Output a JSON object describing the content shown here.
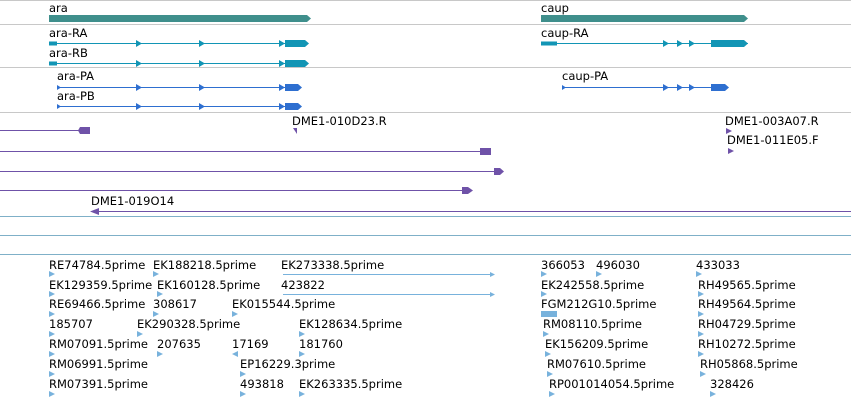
{
  "colors": {
    "track_border": "#c8c8c8",
    "track_border_blue": "#7fb0c8",
    "gene": "#3f8f8c",
    "transcript_ra": "#1295b5",
    "protein": "#2e6fd0",
    "clone": "#6f52a8",
    "est": "#78b2dc"
  },
  "tracks": {
    "genes": [
      {
        "label": "ara"
      },
      {
        "label": "caup"
      }
    ],
    "transcripts": [
      {
        "label": "ara-RA"
      },
      {
        "label": "ara-RB"
      },
      {
        "label": "caup-RA"
      }
    ],
    "proteins": [
      {
        "label": "ara-PA"
      },
      {
        "label": "ara-PB"
      },
      {
        "label": "caup-PA"
      }
    ],
    "clones": [
      {
        "label": "DME1-010D23.R"
      },
      {
        "label": "DME1-003A07.R"
      },
      {
        "label": "DME1-011E05.F"
      },
      {
        "label": "DME1-019O14"
      }
    ],
    "ests": [
      {
        "label": "RE74784.5prime"
      },
      {
        "label": "EK188218.5prime"
      },
      {
        "label": "EK273338.5prime"
      },
      {
        "label": "366053"
      },
      {
        "label": "496030"
      },
      {
        "label": "433033"
      },
      {
        "label": "EK129359.5prime"
      },
      {
        "label": "EK160128.5prime"
      },
      {
        "label": "423822"
      },
      {
        "label": "EK242558.5prime"
      },
      {
        "label": "RH49565.5prime"
      },
      {
        "label": "RE69466.5prime"
      },
      {
        "label": "308617"
      },
      {
        "label": "EK015544.5prime"
      },
      {
        "label": "FGM212G10.5prime"
      },
      {
        "label": "RH49564.5prime"
      },
      {
        "label": "185707"
      },
      {
        "label": "EK290328.5prime"
      },
      {
        "label": "EK128634.5prime"
      },
      {
        "label": "RM08110.5prime"
      },
      {
        "label": "RH04729.5prime"
      },
      {
        "label": "RM07091.5prime"
      },
      {
        "label": "207635"
      },
      {
        "label": "17169"
      },
      {
        "label": "181760"
      },
      {
        "label": "EK156209.5prime"
      },
      {
        "label": "RH10272.5prime"
      },
      {
        "label": "RM06991.5prime"
      },
      {
        "label": "EP16229.3prime"
      },
      {
        "label": "RM07610.5prime"
      },
      {
        "label": "RH05868.5prime"
      },
      {
        "label": "RM07391.5prime"
      },
      {
        "label": "493818"
      },
      {
        "label": "EK263335.5prime"
      },
      {
        "label": "RP001014054.5prime"
      },
      {
        "label": "328426"
      }
    ]
  }
}
